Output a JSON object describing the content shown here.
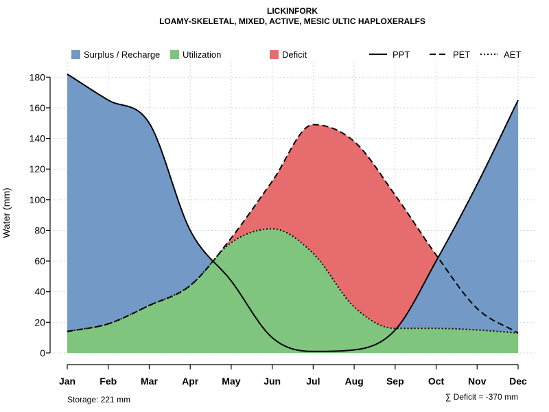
{
  "chart_data": {
    "type": "area",
    "title": "LICKINFORK",
    "subtitle": "LOAMY-SKELETAL, MIXED, ACTIVE, MESIC ULTIC HAPLOXERALFS",
    "xlabel": "",
    "ylabel": "Water (mm)",
    "ylim": [
      0,
      190
    ],
    "yticks": [
      "0",
      "20",
      "40",
      "60",
      "80",
      "100",
      "120",
      "140",
      "160",
      "180"
    ],
    "categories": [
      "Jan",
      "Feb",
      "Mar",
      "Apr",
      "May",
      "Jun",
      "Jul",
      "Aug",
      "Sep",
      "Oct",
      "Nov",
      "Dec"
    ],
    "series": [
      {
        "name": "PPT",
        "style": "solid",
        "values": [
          182,
          165,
          150,
          80,
          47,
          10,
          1,
          2,
          15,
          60,
          110,
          165
        ]
      },
      {
        "name": "PET",
        "style": "dashed",
        "values": [
          14,
          19,
          31,
          44,
          75,
          112,
          149,
          138,
          103,
          64,
          29,
          13
        ]
      },
      {
        "name": "AET",
        "style": "dotted",
        "values": [
          14,
          19,
          31,
          44,
          72,
          81,
          65,
          30,
          16,
          16,
          15,
          13
        ]
      }
    ],
    "legend": {
      "position": "top",
      "entries": [
        {
          "label": "Surplus / Recharge",
          "kind": "fill",
          "color": "#7399c6"
        },
        {
          "label": "Utilization",
          "kind": "fill",
          "color": "#7fc57e"
        },
        {
          "label": "Deficit",
          "kind": "fill",
          "color": "#e76c6d"
        },
        {
          "label": "PPT",
          "kind": "line",
          "style": "solid"
        },
        {
          "label": "PET",
          "kind": "line",
          "style": "dashed"
        },
        {
          "label": "AET",
          "kind": "line",
          "style": "dotted"
        }
      ]
    },
    "grid": true,
    "annotations": {
      "storage": "Storage: 221 mm",
      "deficit": "∑ Deficit = -370 mm"
    }
  },
  "colors": {
    "surplus": "#7399c6",
    "utilization": "#7fc57e",
    "deficit": "#e76c6d",
    "grid": "#d3d3d3",
    "line": "#000000"
  }
}
